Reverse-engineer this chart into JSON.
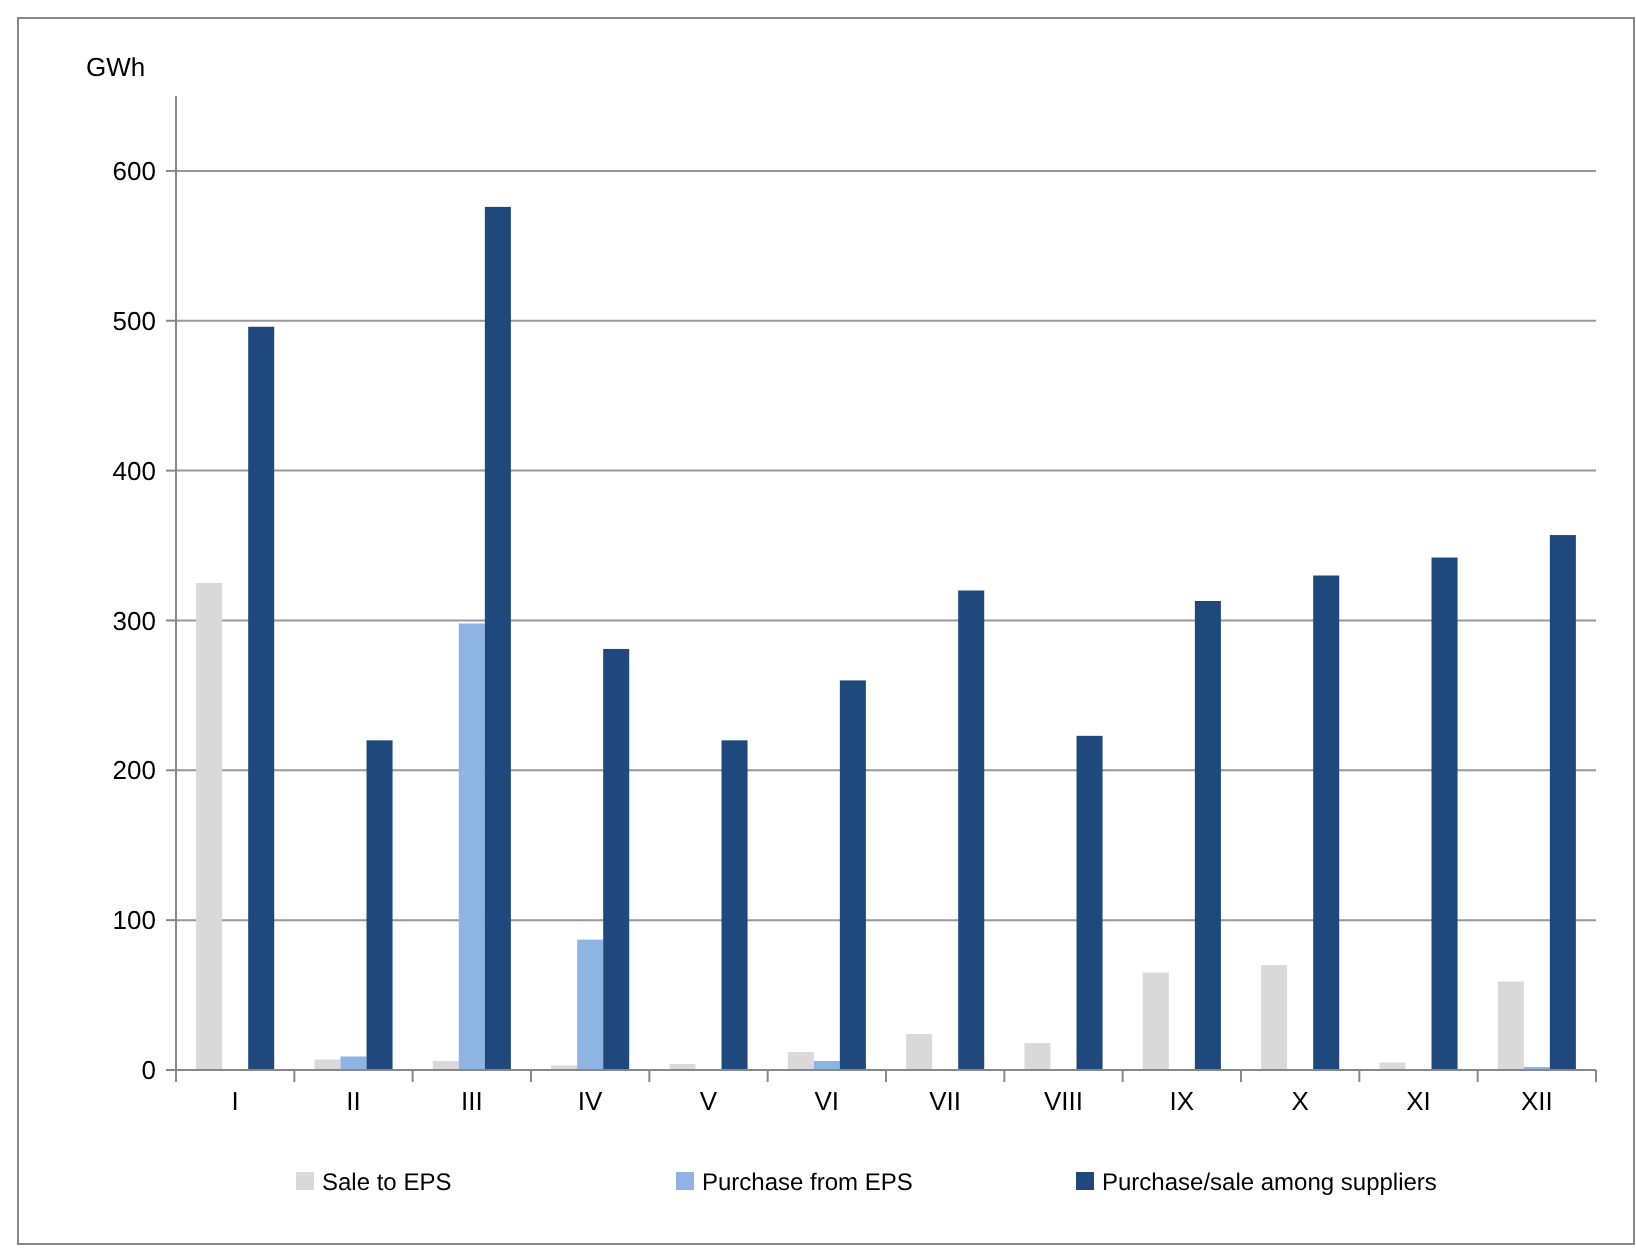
{
  "chart_data": {
    "type": "bar",
    "ylabel": "GWh",
    "categories": [
      "I",
      "II",
      "III",
      "IV",
      "V",
      "VI",
      "VII",
      "VIII",
      "IX",
      "X",
      "XI",
      "XII"
    ],
    "series": [
      {
        "name": "Sale to EPS",
        "color": "#d9d9d9",
        "values": [
          325,
          7,
          6,
          3,
          4,
          12,
          24,
          18,
          65,
          70,
          5,
          59
        ]
      },
      {
        "name": "Purchase from EPS",
        "color": "#8db4e2",
        "values": [
          0,
          9,
          298,
          87,
          0,
          6,
          0,
          0,
          0,
          0,
          0,
          2
        ]
      },
      {
        "name": "Purchase/sale among suppliers",
        "color": "#1f497d",
        "values": [
          496,
          220,
          576,
          281,
          220,
          260,
          320,
          223,
          313,
          330,
          342,
          357
        ]
      }
    ],
    "ylim": [
      0,
      650
    ],
    "yticks": [
      0,
      100,
      200,
      300,
      400,
      500,
      600
    ],
    "grid": "y",
    "legend": "bottom"
  }
}
